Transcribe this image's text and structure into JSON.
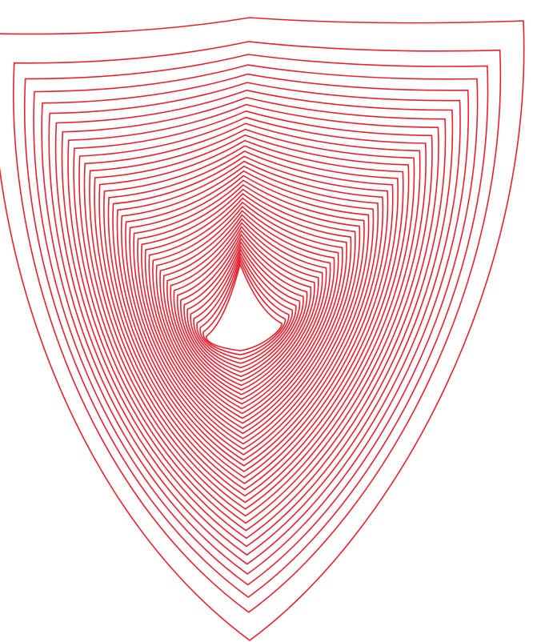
{
  "artwork": {
    "name": "nested-shield-spiral",
    "shape_count": 44,
    "stroke_color": "#e8212e",
    "background_color": "#ffffff"
  }
}
